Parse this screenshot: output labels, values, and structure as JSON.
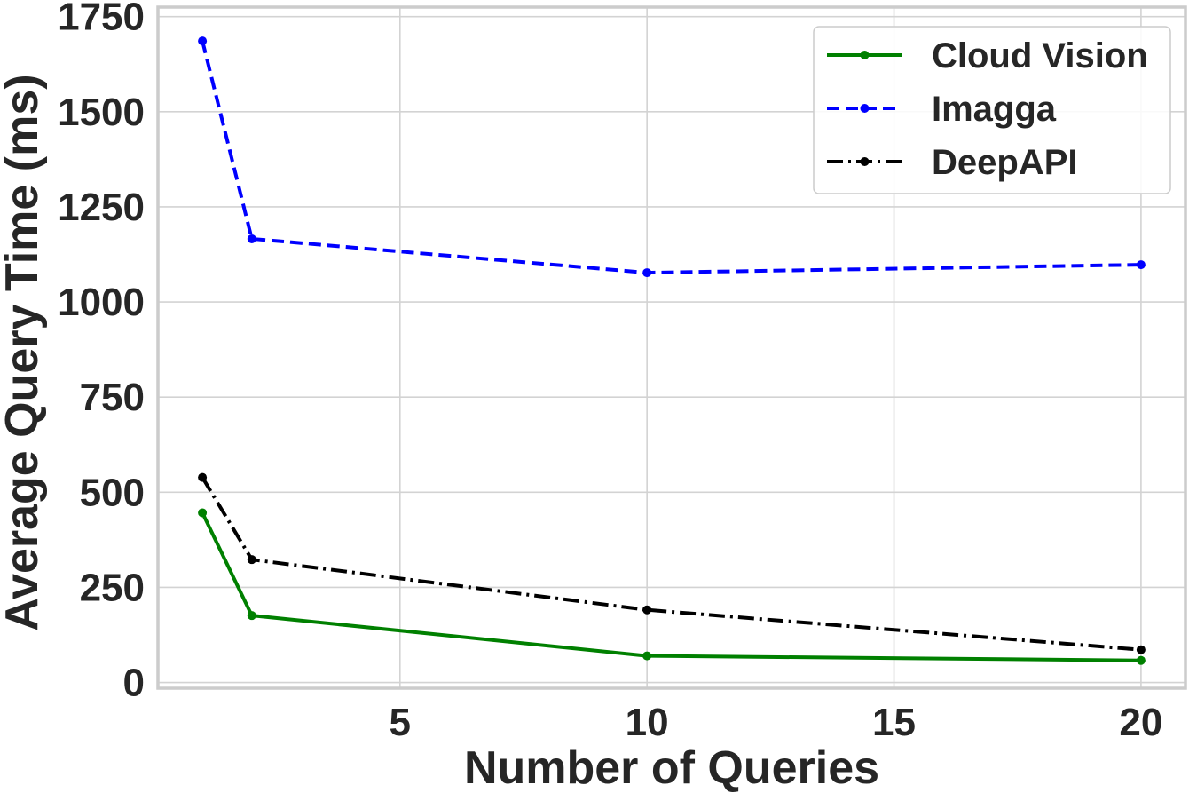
{
  "chart_data": {
    "type": "line",
    "title": "",
    "xlabel": "Number of Queries",
    "ylabel": "Average Query Time (ms)",
    "xlim": [
      0.1,
      20.9
    ],
    "ylim": [
      -15,
      1775
    ],
    "xticks": [
      5,
      10,
      15,
      20
    ],
    "yticks": [
      0,
      250,
      500,
      750,
      1000,
      1250,
      1500,
      1750
    ],
    "grid": true,
    "legend_position": "top-right",
    "x": [
      1,
      2,
      10,
      20
    ],
    "series": [
      {
        "name": "Cloud Vision",
        "values": [
          446,
          176,
          70,
          58
        ],
        "color": "#008000",
        "style": "solid"
      },
      {
        "name": "Imagga",
        "values": [
          1686,
          1166,
          1077,
          1098
        ],
        "color": "#0000ff",
        "style": "dashed"
      },
      {
        "name": "DeepAPI",
        "values": [
          539,
          323,
          191,
          86
        ],
        "color": "#000000",
        "style": "dashdot"
      }
    ]
  }
}
